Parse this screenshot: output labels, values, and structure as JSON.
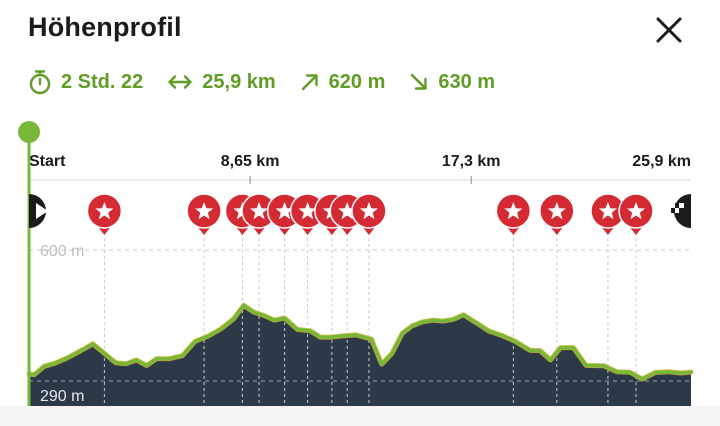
{
  "header": {
    "title": "Höhenprofil",
    "close_icon": "close-icon"
  },
  "stats": {
    "duration": "2 Std. 22",
    "distance": "25,9 km",
    "ascent": "620 m",
    "descent": "630 m",
    "icons": [
      "stopwatch-icon",
      "horizontal-arrows-icon",
      "arrow-up-right-icon",
      "arrow-down-right-icon"
    ],
    "color": "#5f9d26"
  },
  "chart_data": {
    "type": "area",
    "x_tick_labels": [
      "Start",
      "8,65 km",
      "17,3 km",
      "25,9 km"
    ],
    "x_ticks_km": [
      0,
      8.65,
      17.3,
      25.9
    ],
    "xlim": [
      0,
      25.9
    ],
    "elevation_labels": [
      "600 m",
      "290 m"
    ],
    "ylim": [
      290,
      600
    ],
    "grid": true,
    "fill_color": "#2c3a48",
    "line_color": "#78b838",
    "profile": {
      "x": [
        0,
        0.2,
        0.6,
        1.0,
        1.5,
        2.0,
        2.5,
        3.0,
        3.4,
        3.8,
        4.2,
        4.6,
        5.0,
        5.5,
        6.0,
        6.5,
        7.0,
        7.5,
        8.0,
        8.4,
        8.8,
        9.2,
        9.6,
        10.0,
        10.5,
        11.0,
        11.4,
        11.8,
        12.3,
        12.8,
        13.4,
        13.8,
        14.2,
        14.6,
        15.0,
        15.4,
        15.8,
        16.2,
        16.6,
        17.0,
        17.5,
        18.0,
        18.5,
        19.0,
        19.6,
        20.0,
        20.4,
        20.8,
        21.3,
        21.8,
        22.5,
        23.0,
        23.5,
        24.0,
        24.5,
        25.0,
        25.5,
        25.9
      ],
      "y": [
        307,
        305,
        325,
        332,
        345,
        361,
        378,
        353,
        333,
        331,
        340,
        327,
        343,
        343,
        350,
        384,
        396,
        413,
        437,
        469,
        453,
        445,
        434,
        439,
        412,
        409,
        394,
        394,
        397,
        399,
        389,
        330,
        355,
        403,
        421,
        430,
        434,
        432,
        436,
        447,
        428,
        408,
        398,
        385,
        363,
        362,
        340,
        369,
        369,
        327,
        326,
        312,
        311,
        295,
        310,
        312,
        309,
        311
      ]
    },
    "waypoints_km": [
      0,
      2.95,
      6.85,
      8.35,
      9.0,
      10.0,
      10.9,
      11.85,
      12.45,
      13.3,
      18.95,
      20.65,
      22.65,
      23.75,
      25.9
    ],
    "waypoint_icons": [
      "start-icon",
      "star-icon",
      "star-icon",
      "star-icon",
      "star-icon",
      "star-icon",
      "star-icon",
      "star-icon",
      "star-icon",
      "star-icon",
      "star-icon",
      "star-icon",
      "star-icon",
      "star-icon",
      "finish-flag-icon"
    ],
    "poi_color": "#d42a33"
  }
}
